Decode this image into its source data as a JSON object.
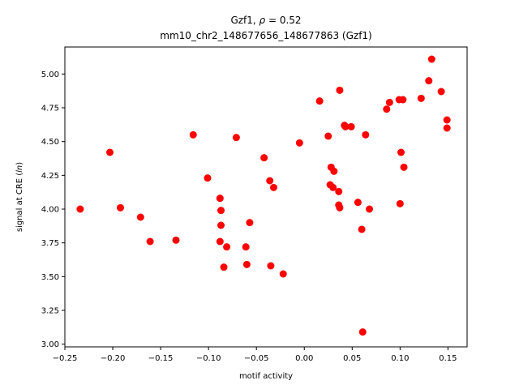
{
  "chart_data": {
    "type": "scatter",
    "title_line1": "Gzf1, ρ = 0.52",
    "title_line2": "mm10_chr2_148677656_148677863 (Gzf1)",
    "xlabel": "motif activity",
    "ylabel": "signal at CRE (ln)",
    "xlim": [
      -0.25,
      0.17
    ],
    "ylim": [
      2.98,
      5.2
    ],
    "xticks": [
      -0.25,
      -0.2,
      -0.15,
      -0.1,
      -0.05,
      0.0,
      0.05,
      0.1,
      0.15
    ],
    "xtick_labels": [
      "−0.25",
      "−0.20",
      "−0.15",
      "−0.10",
      "−0.05",
      "0.00",
      "0.05",
      "0.10",
      "0.15"
    ],
    "yticks": [
      3.0,
      3.25,
      3.5,
      3.75,
      4.0,
      4.25,
      4.5,
      4.75,
      5.0
    ],
    "ytick_labels": [
      "3.00",
      "3.25",
      "3.50",
      "3.75",
      "4.00",
      "4.25",
      "4.50",
      "4.75",
      "5.00"
    ],
    "marker_color": "#ff0000",
    "points": [
      [
        -0.234,
        4.0
      ],
      [
        -0.203,
        4.42
      ],
      [
        -0.192,
        4.01
      ],
      [
        -0.171,
        3.94
      ],
      [
        -0.161,
        3.76
      ],
      [
        -0.134,
        3.77
      ],
      [
        -0.116,
        4.55
      ],
      [
        -0.101,
        4.23
      ],
      [
        -0.088,
        4.08
      ],
      [
        -0.087,
        3.99
      ],
      [
        -0.087,
        3.88
      ],
      [
        -0.088,
        3.76
      ],
      [
        -0.084,
        3.57
      ],
      [
        -0.081,
        3.72
      ],
      [
        -0.071,
        4.53
      ],
      [
        -0.061,
        3.72
      ],
      [
        -0.06,
        3.59
      ],
      [
        -0.057,
        3.9
      ],
      [
        -0.042,
        4.38
      ],
      [
        -0.036,
        4.21
      ],
      [
        -0.035,
        3.58
      ],
      [
        -0.032,
        4.16
      ],
      [
        -0.022,
        3.52
      ],
      [
        -0.005,
        4.49
      ],
      [
        0.016,
        4.8
      ],
      [
        0.025,
        4.54
      ],
      [
        0.027,
        4.18
      ],
      [
        0.028,
        4.31
      ],
      [
        0.03,
        4.16
      ],
      [
        0.031,
        4.28
      ],
      [
        0.036,
        4.13
      ],
      [
        0.036,
        4.03
      ],
      [
        0.037,
        4.01
      ],
      [
        0.037,
        4.88
      ],
      [
        0.042,
        4.62
      ],
      [
        0.043,
        4.61
      ],
      [
        0.049,
        4.61
      ],
      [
        0.056,
        4.05
      ],
      [
        0.06,
        3.85
      ],
      [
        0.061,
        3.09
      ],
      [
        0.064,
        4.55
      ],
      [
        0.068,
        4.0
      ],
      [
        0.086,
        4.74
      ],
      [
        0.089,
        4.79
      ],
      [
        0.099,
        4.81
      ],
      [
        0.1,
        4.04
      ],
      [
        0.101,
        4.42
      ],
      [
        0.103,
        4.81
      ],
      [
        0.104,
        4.31
      ],
      [
        0.122,
        4.82
      ],
      [
        0.13,
        4.95
      ],
      [
        0.133,
        5.11
      ],
      [
        0.143,
        4.87
      ],
      [
        0.149,
        4.6
      ],
      [
        0.149,
        4.66
      ]
    ]
  }
}
